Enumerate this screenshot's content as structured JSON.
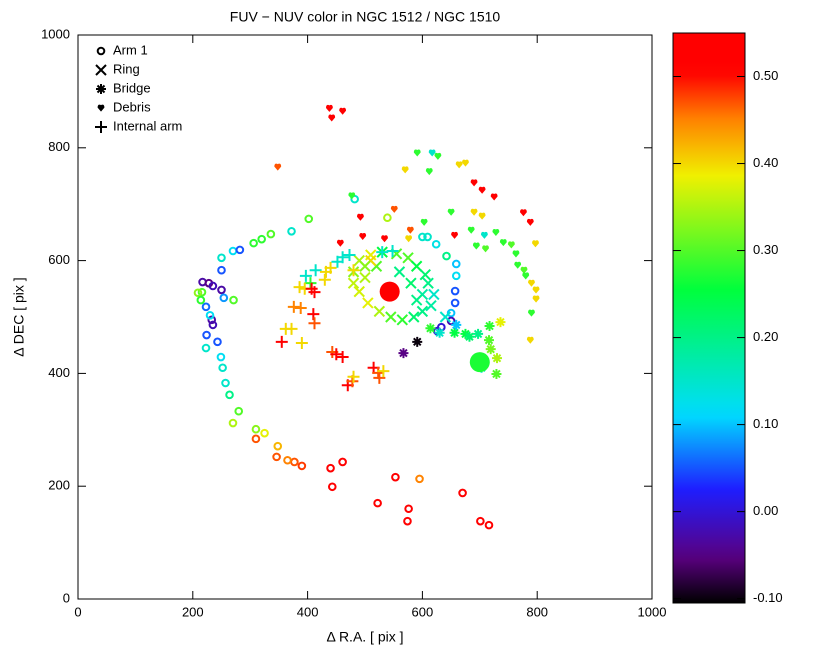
{
  "chart_data": {
    "type": "scatter",
    "title": "FUV − NUV color in NGC 1512 / NGC 1510",
    "x_label": "Δ R.A.  [ pix ]",
    "y_label": "Δ DEC [ pix ]",
    "xlim": [
      0,
      1000
    ],
    "xticks": [
      0,
      200,
      400,
      600,
      800,
      1000
    ],
    "ylim": [
      0,
      1000
    ],
    "yticks": [
      0,
      200,
      400,
      600,
      800,
      1000
    ],
    "clim": [
      -0.105,
      0.55
    ],
    "cticks": [
      {
        "value": -0.1,
        "label": "-0.10"
      },
      {
        "value": 0,
        "label": "0.00"
      },
      {
        "value": 0.1,
        "label": "0.10"
      },
      {
        "value": 0.2,
        "label": "0.20"
      },
      {
        "value": 0.3,
        "label": "0.30"
      },
      {
        "value": 0.4,
        "label": "0.40"
      },
      {
        "value": 0.5,
        "label": "0.50"
      }
    ],
    "legend": "upper left",
    "series": [
      {
        "name": "Arm 1",
        "marker": "circle",
        "x": [
          716,
          701,
          670,
          595,
          576,
          574,
          553,
          522,
          461,
          443,
          440,
          390,
          377,
          365,
          348,
          346,
          325,
          310,
          310,
          280,
          270,
          264,
          257,
          252,
          249,
          243,
          223,
          224,
          235,
          233,
          230,
          223,
          216,
          209,
          214,
          217,
          228,
          235,
          250,
          250,
          254,
          271,
          250,
          270,
          282,
          306,
          320,
          336,
          372,
          402,
          482,
          539,
          609,
          600,
          624,
          642,
          659,
          659,
          657,
          657,
          650,
          650,
          633,
          626
        ],
        "y": [
          131,
          138,
          188,
          213,
          160,
          138,
          216,
          170,
          243,
          199,
          232,
          236,
          243,
          246,
          271,
          252,
          294,
          284,
          301,
          333,
          312,
          362,
          383,
          410,
          429,
          456,
          445,
          468,
          486,
          495,
          503,
          518,
          544,
          543,
          530,
          562,
          560,
          555,
          548,
          583,
          534,
          530,
          605,
          617,
          619,
          631,
          638,
          647,
          652,
          674,
          709,
          676,
          642,
          642,
          629,
          608,
          594,
          573,
          546,
          525,
          507,
          493,
          482,
          475
        ],
        "values": [
          0.55,
          0.55,
          0.55,
          0.45,
          0.55,
          0.55,
          0.55,
          0.55,
          0.55,
          0.55,
          0.55,
          0.48,
          0.47,
          0.45,
          0.42,
          0.47,
          0.38,
          0.47,
          0.33,
          0.3,
          0.35,
          0.2,
          0.15,
          0.15,
          0.12,
          0.05,
          0.15,
          0.05,
          -0.02,
          -0.03,
          0.12,
          0.06,
          0.3,
          0.33,
          0.28,
          -0.03,
          -0.05,
          -0.02,
          -0.03,
          0.05,
          0.08,
          0.3,
          0.15,
          0.12,
          0.05,
          0.28,
          0.28,
          0.3,
          0.15,
          0.3,
          0.15,
          0.35,
          0.15,
          0.15,
          0.13,
          0.2,
          0.1,
          0.12,
          0.05,
          0.05,
          0.1,
          -0.02,
          0,
          0
        ]
      },
      {
        "name": "Ring",
        "marker": "x",
        "x": [
          480,
          490,
          510,
          530,
          555,
          575,
          590,
          605,
          610,
          620,
          615,
          600,
          585,
          565,
          545,
          525,
          505,
          490,
          480,
          500,
          520,
          560,
          580,
          600,
          640,
          590,
          510,
          500
        ],
        "y": [
          580,
          600,
          610,
          615,
          612,
          605,
          590,
          575,
          560,
          540,
          520,
          510,
          500,
          495,
          500,
          510,
          525,
          545,
          560,
          570,
          590,
          580,
          560,
          540,
          500,
          530,
          600,
          590
        ],
        "values": [
          0.33,
          0.35,
          0.38,
          0.25,
          0.3,
          0.3,
          0.25,
          0.22,
          0.2,
          0.15,
          0.18,
          0.2,
          0.22,
          0.28,
          0.3,
          0.35,
          0.38,
          0.37,
          0.36,
          0.35,
          0.3,
          0.2,
          0.22,
          0.18,
          0.15,
          0.2,
          0.4,
          0.33
        ]
      },
      {
        "name": "Bridge",
        "marker": "asterisk",
        "x": [
          567,
          591,
          614,
          630,
          656,
          675,
          697,
          717,
          716,
          719,
          730,
          729,
          703,
          736,
          659,
          682
        ],
        "y": [
          436,
          456,
          480,
          472,
          472,
          470,
          470,
          484,
          459,
          443,
          427,
          399,
          410,
          491,
          486,
          465
        ],
        "values": [
          -0.05,
          -0.1,
          0.28,
          0.15,
          0.25,
          0.25,
          0.2,
          0.28,
          0.3,
          0.32,
          0.35,
          0.3,
          0.15,
          0.38,
          0.1,
          0.22
        ]
      },
      {
        "name": "Debris",
        "marker": "heart",
        "x": [
          438,
          442,
          461,
          348,
          591,
          617,
          627,
          570,
          664,
          675,
          612,
          690,
          704,
          725,
          477,
          551,
          650,
          690,
          704,
          776,
          788,
          492,
          579,
          603,
          656,
          685,
          708,
          728,
          741,
          755,
          797,
          457,
          496,
          534,
          576,
          694,
          710,
          763,
          766,
          777,
          780,
          790,
          798,
          798,
          790,
          788
        ],
        "y": [
          870,
          853,
          865,
          766,
          791,
          791,
          785,
          761,
          770,
          773,
          758,
          738,
          725,
          713,
          715,
          691,
          686,
          686,
          679,
          685,
          668,
          677,
          654,
          668,
          645,
          654,
          645,
          650,
          632,
          628,
          630,
          631,
          643,
          639,
          639,
          626,
          621,
          612,
          592,
          583,
          573,
          560,
          548,
          532,
          507,
          459
        ],
        "values": [
          0.53,
          0.53,
          0.53,
          0.47,
          0.28,
          0.15,
          0.28,
          0.4,
          0.4,
          0.4,
          0.28,
          0.53,
          0.53,
          0.53,
          0.28,
          0.47,
          0.28,
          0.4,
          0.4,
          0.53,
          0.53,
          0.53,
          0.47,
          0.28,
          0.53,
          0.28,
          0.15,
          0.28,
          0.28,
          0.3,
          0.4,
          0.53,
          0.53,
          0.53,
          0.4,
          0.28,
          0.3,
          0.28,
          0.28,
          0.3,
          0.28,
          0.4,
          0.4,
          0.4,
          0.28,
          0.4
        ]
      },
      {
        "name": "Internal arm",
        "marker": "plus",
        "x": [
          397,
          414,
          405,
          430,
          386,
          395,
          407,
          412,
          432,
          440,
          452,
          461,
          376,
          388,
          410,
          412,
          372,
          362,
          355,
          390,
          443,
          450,
          461,
          470,
          478,
          480,
          515,
          523,
          525,
          532,
          480,
          473,
          530,
          548
        ],
        "y": [
          573,
          583,
          560,
          566,
          553,
          550,
          550,
          544,
          580,
          587,
          598,
          606,
          518,
          516,
          505,
          489,
          479,
          479,
          456,
          454,
          438,
          434,
          429,
          379,
          386,
          394,
          410,
          401,
          392,
          404,
          583,
          610,
          615,
          617
        ],
        "values": [
          0.15,
          0.15,
          0.28,
          0.4,
          0.4,
          0.4,
          0.53,
          0.53,
          0.4,
          0.4,
          0.15,
          0.15,
          0.45,
          0.45,
          0.53,
          0.47,
          0.4,
          0.4,
          0.53,
          0.4,
          0.47,
          0.53,
          0.53,
          0.53,
          0.47,
          0.4,
          0.53,
          0.47,
          0.47,
          0.4,
          0.4,
          0.15,
          0.15,
          0.15
        ]
      }
    ],
    "nuclei": {
      "x": [
        543,
        700
      ],
      "y": [
        545,
        420
      ],
      "values": [
        0.53,
        0.27
      ]
    }
  }
}
